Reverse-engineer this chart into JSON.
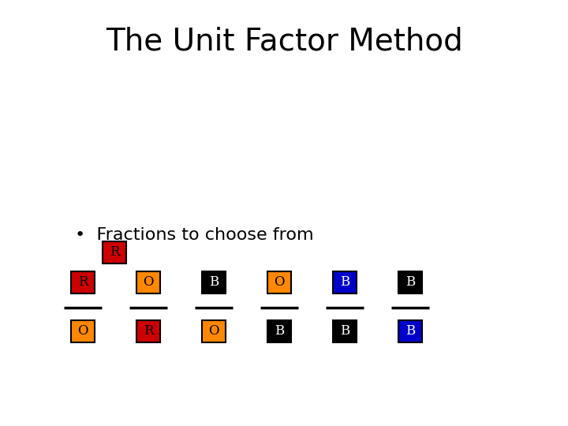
{
  "title": "The Unit Factor Method",
  "title_fontsize": 28,
  "single_box": {
    "letter": "R",
    "bg_color": "#cc0000",
    "text_color": "#000000"
  },
  "bullet_text": "Fractions to choose from",
  "bullet_fontsize": 16,
  "fractions": [
    {
      "top_letter": "R",
      "top_bg": "#cc0000",
      "top_text": "#000000",
      "bot_letter": "O",
      "bot_bg": "#ff8800",
      "bot_text": "#000000"
    },
    {
      "top_letter": "O",
      "top_bg": "#ff8800",
      "top_text": "#000000",
      "bot_letter": "R",
      "bot_bg": "#cc0000",
      "bot_text": "#000000"
    },
    {
      "top_letter": "B",
      "top_bg": "#000000",
      "top_text": "#ffffff",
      "bot_letter": "O",
      "bot_bg": "#ff8800",
      "bot_text": "#000000"
    },
    {
      "top_letter": "O",
      "top_bg": "#ff8800",
      "top_text": "#000000",
      "bot_letter": "B",
      "bot_bg": "#000000",
      "bot_text": "#ffffff"
    },
    {
      "top_letter": "B",
      "top_bg": "#0000cc",
      "top_text": "#ffffff",
      "bot_letter": "B",
      "bot_bg": "#000000",
      "bot_text": "#ffffff"
    },
    {
      "top_letter": "B",
      "top_bg": "#000000",
      "top_text": "#ffffff",
      "bot_letter": "B",
      "bot_bg": "#0000cc",
      "bot_text": "#ffffff"
    }
  ],
  "background_color": "#ffffff",
  "letter_fontsize": 12
}
